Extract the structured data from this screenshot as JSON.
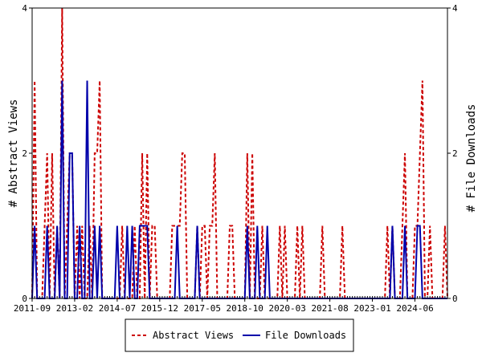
{
  "chart_data": {
    "type": "line",
    "x_start": "2011-09",
    "x_tick_labels": [
      "2011-09",
      "2013-02",
      "2014-07",
      "2015-12",
      "2017-05",
      "2018-10",
      "2020-03",
      "2021-08",
      "2023-01",
      "2024-06"
    ],
    "ylabel_left": "# Abstract Views",
    "ylabel_right": "# File Downloads",
    "ylim_left": [
      0,
      4
    ],
    "ylim_right": [
      0,
      4
    ],
    "y_ticks_left": [
      "0",
      "2",
      "4"
    ],
    "y_ticks_right": [
      "0",
      "2",
      "4"
    ],
    "legend_position": "bottom",
    "series": [
      {
        "name": "Abstract Views",
        "color": "#cc0000",
        "style": "dashed",
        "values": [
          0,
          3,
          0,
          0,
          0,
          1,
          2,
          0,
          2,
          0,
          1,
          0,
          4,
          0,
          1,
          2,
          2,
          0,
          1,
          0,
          1,
          0,
          0,
          1,
          0,
          2,
          2,
          3,
          0,
          0,
          0,
          0,
          0,
          0,
          0,
          0,
          1,
          0,
          0,
          0,
          0,
          1,
          0,
          0,
          2,
          0,
          2,
          0,
          1,
          1,
          0,
          0,
          0,
          0,
          0,
          0,
          1,
          1,
          1,
          1,
          2,
          2,
          0,
          0,
          0,
          0,
          1,
          0,
          1,
          1,
          0,
          1,
          1,
          2,
          0,
          0,
          0,
          0,
          0,
          1,
          1,
          0,
          0,
          0,
          0,
          0,
          2,
          0,
          2,
          0,
          0,
          0,
          1,
          0,
          0,
          0,
          0,
          0,
          0,
          1,
          0,
          1,
          0,
          0,
          0,
          0,
          1,
          0,
          1,
          0,
          0,
          0,
          0,
          0,
          0,
          0,
          1,
          0,
          0,
          0,
          0,
          0,
          0,
          0,
          1,
          0,
          0,
          0,
          0,
          0,
          0,
          0,
          0,
          0,
          0,
          0,
          0,
          0,
          0,
          0,
          0,
          0,
          1,
          0,
          1,
          0,
          0,
          0,
          1,
          2,
          0,
          0,
          0,
          1,
          1,
          2,
          3,
          0,
          0,
          1,
          0,
          0,
          0,
          0,
          0,
          1,
          0
        ]
      },
      {
        "name": "File Downloads",
        "color": "#0000aa",
        "style": "solid",
        "values": [
          0,
          1,
          0,
          0,
          0,
          0,
          1,
          0,
          0,
          0,
          1,
          0,
          3,
          0,
          0,
          2,
          2,
          0,
          0,
          1,
          0,
          0,
          3,
          0,
          0,
          1,
          0,
          1,
          0,
          0,
          0,
          0,
          0,
          0,
          1,
          0,
          0,
          0,
          1,
          0,
          1,
          0,
          0,
          1,
          1,
          1,
          1,
          0,
          0,
          0,
          0,
          0,
          0,
          0,
          0,
          0,
          0,
          0,
          1,
          0,
          0,
          0,
          0,
          0,
          0,
          0,
          1,
          0,
          0,
          0,
          0,
          0,
          0,
          0,
          0,
          0,
          0,
          0,
          0,
          0,
          0,
          0,
          0,
          0,
          0,
          0,
          1,
          0,
          0,
          0,
          1,
          0,
          0,
          0,
          1,
          0,
          0,
          0,
          0,
          0,
          0,
          0,
          0,
          0,
          0,
          0,
          0,
          0,
          0,
          0,
          0,
          0,
          0,
          0,
          0,
          0,
          0,
          0,
          0,
          0,
          0,
          0,
          0,
          0,
          0,
          0,
          0,
          0,
          0,
          0,
          0,
          0,
          0,
          0,
          0,
          0,
          0,
          0,
          0,
          0,
          0,
          0,
          0,
          0,
          1,
          0,
          0,
          0,
          0,
          1,
          0,
          0,
          0,
          0,
          1,
          1,
          0,
          0,
          0,
          0,
          0,
          0,
          0,
          0,
          0,
          0,
          0
        ]
      }
    ]
  }
}
